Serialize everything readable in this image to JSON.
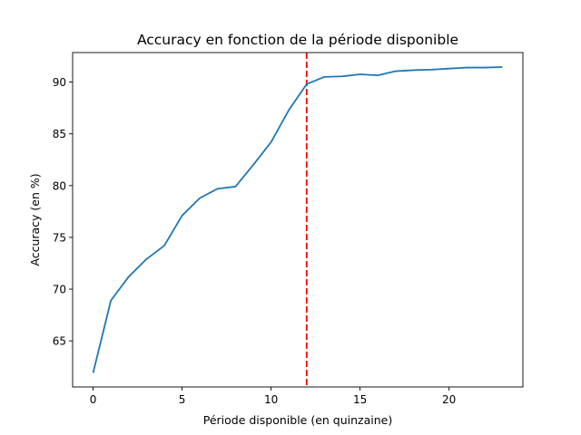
{
  "chart_data": {
    "type": "line",
    "title": "Accuracy en fonction de la période disponible",
    "xlabel": "Période disponible (en quinzaine)",
    "ylabel": "Accuracy (en %)",
    "xlim": [
      -1.15,
      24.15
    ],
    "ylim": [
      60.55,
      92.85
    ],
    "xticks": [
      0,
      5,
      10,
      15,
      20
    ],
    "yticks": [
      65,
      70,
      75,
      80,
      85,
      90
    ],
    "grid": false,
    "series": [
      {
        "color": "#1f77b4",
        "x": [
          0,
          1,
          2,
          3,
          4,
          5,
          6,
          7,
          8,
          9,
          10,
          11,
          12,
          13,
          14,
          15,
          16,
          17,
          18,
          19,
          20,
          21,
          22,
          23
        ],
        "y": [
          61.9,
          68.9,
          71.2,
          72.9,
          74.2,
          77.1,
          78.8,
          79.7,
          79.9,
          82.0,
          84.2,
          87.3,
          89.8,
          90.5,
          90.55,
          90.75,
          90.65,
          91.05,
          91.15,
          91.2,
          91.3,
          91.4,
          91.4,
          91.45
        ]
      }
    ],
    "reference_lines": [
      {
        "orientation": "vertical",
        "x": 12,
        "color": "#ff0000",
        "style": "dashed"
      }
    ]
  }
}
